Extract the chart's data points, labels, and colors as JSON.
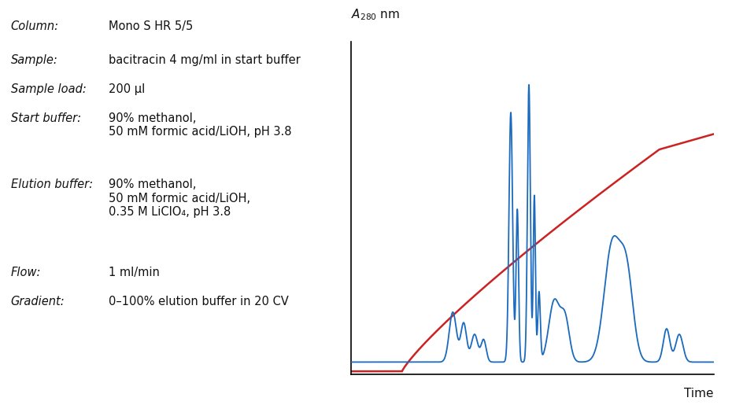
{
  "background_color": "#ffffff",
  "xlabel": "Time",
  "blue_color": "#1a6abf",
  "red_color": "#cc2222",
  "text_color": "#111111",
  "label_rows": [
    [
      "Column:",
      "Mono S HR 5/5"
    ],
    [
      "Sample:",
      "bacitracin 4 mg/ml in start buffer"
    ],
    [
      "Sample load:",
      "200 µl"
    ],
    [
      "Start buffer:",
      "90% methanol,\n50 mM formic acid/LiOH, pH 3.8"
    ],
    [
      "Elution buffer:",
      "90% methanol,\n50 mM formic acid/LiOH,\n0.35 M LiClO₄, pH 3.8"
    ],
    [
      "Flow:",
      "1 ml/min"
    ],
    [
      "Gradient:",
      "0–100% elution buffer in 20 CV"
    ]
  ],
  "label_fontsizes": [
    11,
    11,
    11,
    11,
    11,
    11,
    11
  ]
}
